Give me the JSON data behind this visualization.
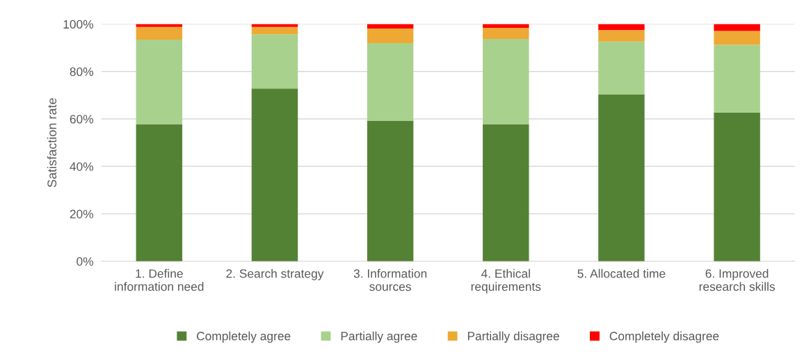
{
  "chart_data": {
    "type": "bar",
    "stacked": true,
    "ylabel": "Satisfaction rate",
    "categories": [
      "1. Define\ninformation need",
      "2. Search strategy",
      "3. Information\nsources",
      "4. Ethical\nrequirements",
      "5. Allocated time",
      "6. Improved\nresearch skills"
    ],
    "series": [
      {
        "name": "Completely agree",
        "color": "#548235",
        "values": [
          57.8,
          72.8,
          59.3,
          57.8,
          70.3,
          62.7
        ]
      },
      {
        "name": "Partially agree",
        "color": "#a9d18e",
        "values": [
          35.6,
          22.9,
          32.7,
          35.9,
          22.3,
          28.5
        ]
      },
      {
        "name": "Partially disagree",
        "color": "#eda934",
        "values": [
          5.4,
          3.1,
          6.1,
          4.7,
          4.9,
          5.9
        ]
      },
      {
        "name": "Completely disagree",
        "color": "#ff0000",
        "values": [
          1.2,
          1.2,
          1.9,
          1.6,
          2.5,
          2.9
        ]
      }
    ],
    "ylim": [
      0,
      100
    ],
    "yticks": [
      {
        "value": 0,
        "label": "0%"
      },
      {
        "value": 20,
        "label": "20%"
      },
      {
        "value": 40,
        "label": "40%"
      },
      {
        "value": 60,
        "label": "60%"
      },
      {
        "value": 80,
        "label": "80%"
      },
      {
        "value": 100,
        "label": "100%"
      }
    ],
    "grid": "y",
    "legend": "bottom"
  }
}
